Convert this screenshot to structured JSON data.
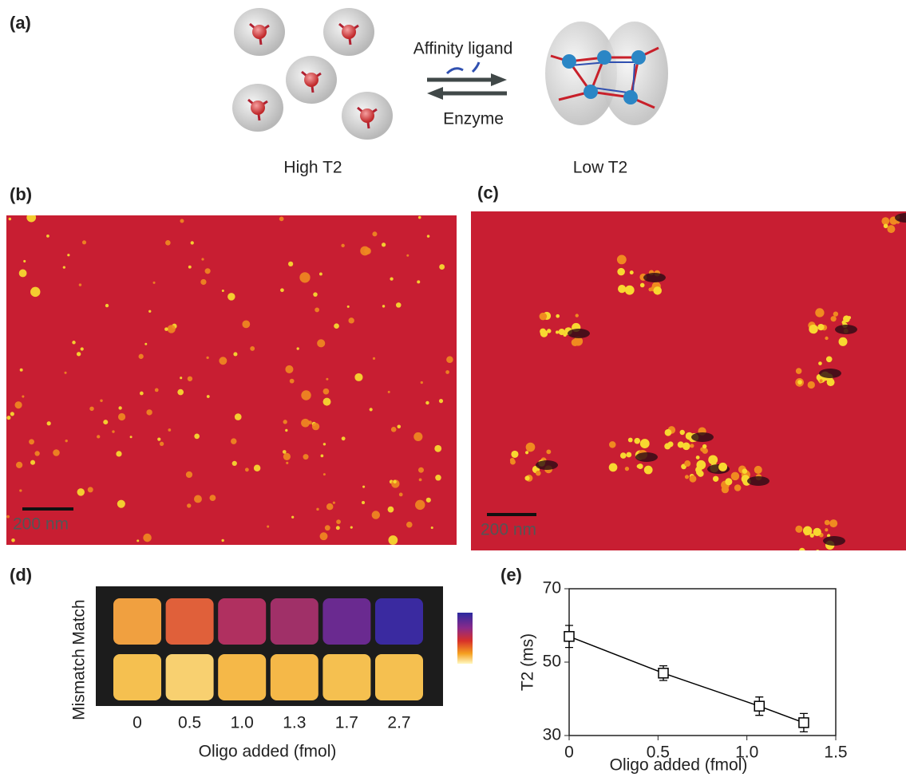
{
  "panels": {
    "a": {
      "label": "(a)",
      "forward": "Affinity ligand",
      "backward": "Enzyme",
      "left_state": "High T2",
      "right_state": "Low T2"
    },
    "b": {
      "label": "(b)",
      "scale_bar": "200 nm"
    },
    "c": {
      "label": "(c)",
      "scale_bar": "200 nm"
    },
    "d": {
      "label": "(d)",
      "rows": [
        "Match",
        "Mismatch"
      ],
      "columns": [
        "0",
        "0.5",
        "1.0",
        "1.3",
        "1.7",
        "2.7"
      ],
      "x_label": "Oligo added (fmol)"
    },
    "e": {
      "label": "(e)"
    }
  },
  "chart_data": {
    "type": "line",
    "x_label": "Oligo added (fmol)",
    "y_label": "T2 (ms)",
    "x": [
      0,
      0.53,
      1.07,
      1.32
    ],
    "values": [
      57,
      47,
      38,
      33.5
    ],
    "errors": [
      3,
      2,
      2.5,
      2.5
    ],
    "color": "#000000",
    "xlim": [
      0,
      1.5
    ],
    "xticks": [
      0,
      0.5,
      {
        "value": 1,
        "label": "1.0"
      },
      1.5
    ],
    "ylim": [
      30,
      70
    ],
    "yticks": [
      30,
      50,
      70
    ]
  }
}
